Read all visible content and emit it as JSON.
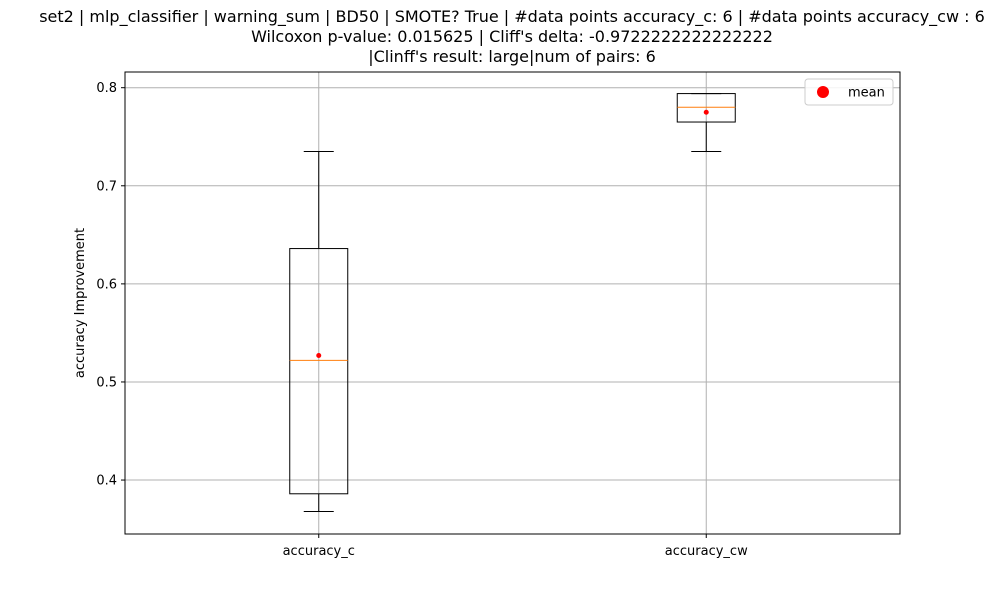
{
  "chart_data": {
    "type": "box",
    "title_lines": [
      "set2 | mlp_classifier | warning_sum | BD50 | SMOTE? True | #data points accuracy_c: 6 | #data points accuracy_cw : 6",
      "Wilcoxon p-value: 0.015625 | Cliff's delta: -0.9722222222222222",
      "|Clinff's result: large|num of pairs: 6"
    ],
    "ylabel": "accuracy Improvement",
    "ylim": [
      0.345,
      0.816
    ],
    "yticks": [
      0.4,
      0.5,
      0.6,
      0.7,
      0.8
    ],
    "ytick_labels": [
      "0.4",
      "0.5",
      "0.6",
      "0.7",
      "0.8"
    ],
    "grid": true,
    "legend": {
      "placement": "top-right",
      "entries": [
        {
          "label": "mean",
          "color": "#ff0000"
        }
      ]
    },
    "colors": {
      "median": "#ff7f0e",
      "mean": "#ff0000",
      "box": "#000000",
      "grid": "#b0b0b0"
    },
    "boxes": [
      {
        "label": "accuracy_c",
        "whisker_low": 0.368,
        "q1": 0.386,
        "median": 0.522,
        "q3": 0.636,
        "whisker_high": 0.735,
        "mean": 0.527
      },
      {
        "label": "accuracy_cw",
        "whisker_low": 0.735,
        "q1": 0.765,
        "median": 0.78,
        "q3": 0.794,
        "whisker_high": 0.794,
        "mean": 0.775
      }
    ]
  }
}
